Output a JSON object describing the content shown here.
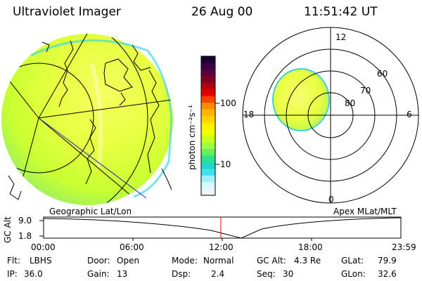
{
  "header": {
    "title": "Ultraviolet Imager",
    "date": "26 Aug 00",
    "time": "11:51:42 UT"
  },
  "colorbar": {
    "unit_label": "photon cm⁻²s⁻¹",
    "ticks": [
      "100",
      "10"
    ],
    "colors": [
      "#1a0030",
      "#3a0046",
      "#5a0040",
      "#800020",
      "#b00010",
      "#e00000",
      "#ff4000",
      "#ff8c00",
      "#ffb400",
      "#ffd200",
      "#ffee00",
      "#eeff00",
      "#c8ff20",
      "#9cff40",
      "#66f060",
      "#30e090",
      "#20d8c8",
      "#40e0f0",
      "#a0f0ff",
      "#d8f8ff",
      "#eef6fa"
    ]
  },
  "geo_panel": {
    "caption": "Geographic Lat/Lon"
  },
  "polar_panel": {
    "caption": "Apex MLat/MLT",
    "mlt_labels": {
      "top": "12",
      "left": "18",
      "right": "6",
      "bottom": "0"
    },
    "lat_labels": [
      "60",
      "70",
      "80"
    ]
  },
  "timeline": {
    "ylabel": "GC Alt",
    "yticks": [
      "9.0",
      "1.8"
    ],
    "xticks": [
      "00:00",
      "06:00",
      "12:00",
      "18:00",
      "23:59"
    ],
    "cursor_fraction": 0.496
  },
  "info": {
    "row1": [
      {
        "label": "Flt:",
        "value": "LBHS"
      },
      {
        "label": "Door:",
        "value": "Open"
      },
      {
        "label": "Mode:",
        "value": "Normal"
      },
      {
        "label": "GC Alt:",
        "value": "4.3 Re"
      },
      {
        "label": "GLat:",
        "value": "79.9"
      }
    ],
    "row2": [
      {
        "label": "IP:",
        "value": "36.0"
      },
      {
        "label": "Gain:",
        "value": "13"
      },
      {
        "label": "Dsp:",
        "value": "2.4"
      },
      {
        "label": "Seq:",
        "value": "30"
      },
      {
        "label": "GLon:",
        "value": "32.6"
      }
    ]
  }
}
